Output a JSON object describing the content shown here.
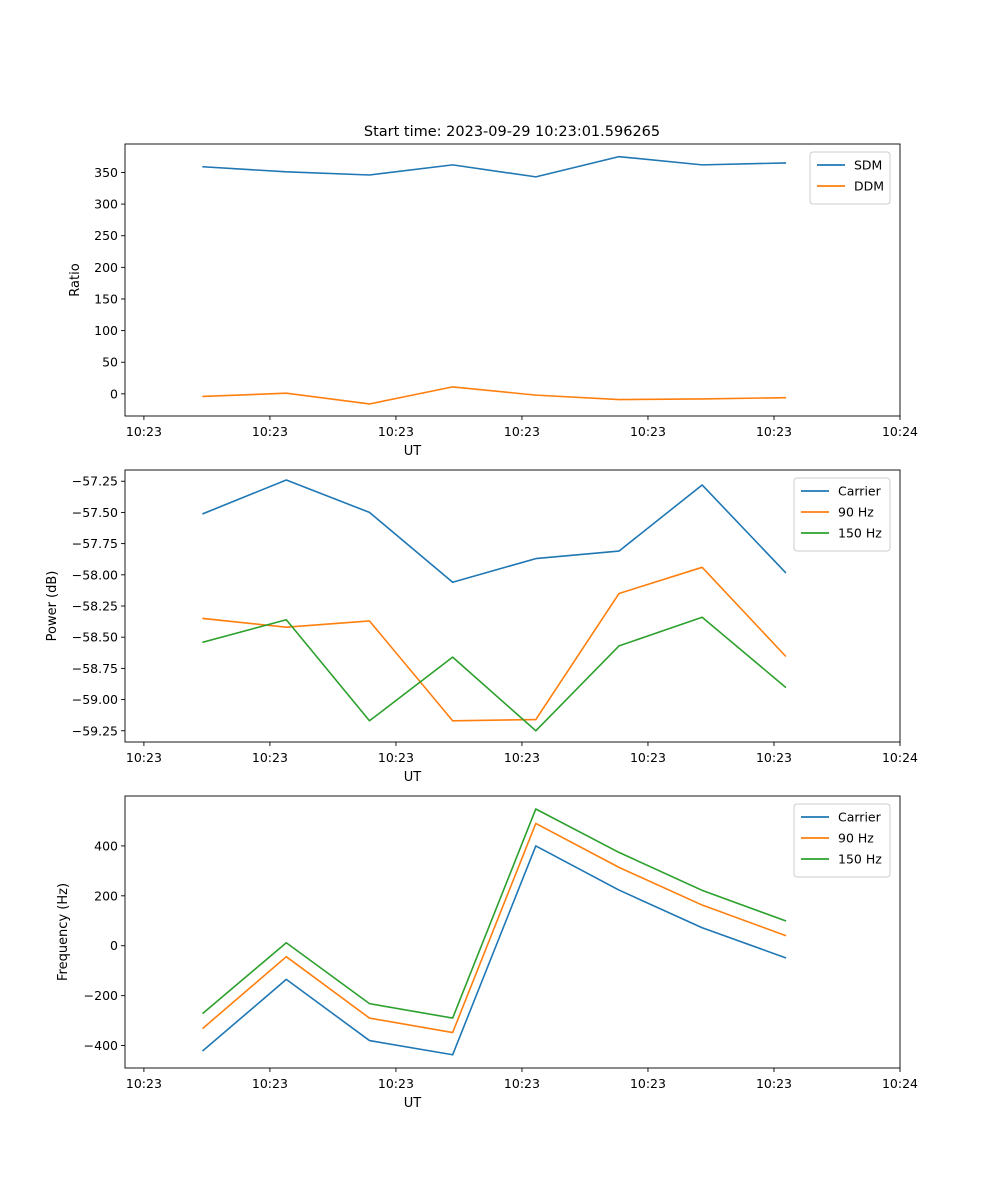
{
  "figure": {
    "title": "Start time: 2023-09-29 10:23:01.596265"
  },
  "chart_data": [
    {
      "type": "line",
      "title": "Start time: 2023-09-29 10:23:01.596265",
      "xlabel": "UT",
      "ylabel": "Ratio",
      "x_ticks": [
        0,
        1,
        2,
        3,
        4,
        5,
        6
      ],
      "x_tick_labels": [
        "10:23",
        "10:23",
        "10:23",
        "10:23",
        "10:23",
        "10:23",
        "10:24"
      ],
      "xlim": [
        -0.15,
        6.0
      ],
      "ylim": [
        -35,
        395
      ],
      "y_ticks": [
        0,
        50,
        100,
        150,
        200,
        250,
        300,
        350
      ],
      "y_tick_labels": [
        "0",
        "50",
        "100",
        "150",
        "200",
        "250",
        "300",
        "350"
      ],
      "legend_position": "top-right",
      "x": [
        0.47,
        1.13,
        1.79,
        2.45,
        3.11,
        3.77,
        4.43,
        5.09
      ],
      "series": [
        {
          "name": "SDM",
          "color": "#1f77b4",
          "values": [
            359,
            351,
            346,
            362,
            343,
            375,
            362,
            365
          ]
        },
        {
          "name": "DDM",
          "color": "#ff7f0e",
          "values": [
            -4,
            1,
            -16,
            11,
            -2,
            -9,
            -8,
            -6
          ]
        }
      ]
    },
    {
      "type": "line",
      "title": "",
      "xlabel": "UT",
      "ylabel": "Power (dB)",
      "x_ticks": [
        0,
        1,
        2,
        3,
        4,
        5,
        6
      ],
      "x_tick_labels": [
        "10:23",
        "10:23",
        "10:23",
        "10:23",
        "10:23",
        "10:23",
        "10:24"
      ],
      "xlim": [
        -0.15,
        6.0
      ],
      "ylim": [
        -59.34,
        -57.16
      ],
      "y_ticks": [
        -59.25,
        -59.0,
        -58.75,
        -58.5,
        -58.25,
        -58.0,
        -57.75,
        -57.5,
        -57.25
      ],
      "y_tick_labels": [
        "−59.25",
        "−59.00",
        "−58.75",
        "−58.50",
        "−58.25",
        "−58.00",
        "−57.75",
        "−57.50",
        "−57.25"
      ],
      "legend_position": "top-right",
      "x": [
        0.47,
        1.13,
        1.79,
        2.45,
        3.11,
        3.77,
        4.43,
        5.09
      ],
      "series": [
        {
          "name": "Carrier",
          "color": "#1f77b4",
          "values": [
            -57.51,
            -57.24,
            -57.5,
            -58.06,
            -57.87,
            -57.81,
            -57.28,
            -57.98
          ]
        },
        {
          "name": "90 Hz",
          "color": "#ff7f0e",
          "values": [
            -58.35,
            -58.42,
            -58.37,
            -59.17,
            -59.16,
            -58.15,
            -57.94,
            -58.65
          ]
        },
        {
          "name": "150 Hz",
          "color": "#2ca02c",
          "values": [
            -58.54,
            -58.36,
            -59.17,
            -58.66,
            -59.25,
            -58.57,
            -58.34,
            -58.9
          ]
        }
      ]
    },
    {
      "type": "line",
      "title": "",
      "xlabel": "UT",
      "ylabel": "Frequency (Hz)",
      "x_ticks": [
        0,
        1,
        2,
        3,
        4,
        5,
        6
      ],
      "x_tick_labels": [
        "10:23",
        "10:23",
        "10:23",
        "10:23",
        "10:23",
        "10:23",
        "10:24"
      ],
      "xlim": [
        -0.15,
        6.0
      ],
      "ylim": [
        -490,
        600
      ],
      "y_ticks": [
        -400,
        -200,
        0,
        200,
        400
      ],
      "y_tick_labels": [
        "−400",
        "−200",
        "0",
        "200",
        "400"
      ],
      "legend_position": "top-right",
      "x": [
        0.47,
        1.13,
        1.79,
        2.45,
        3.11,
        3.77,
        4.43,
        5.09
      ],
      "series": [
        {
          "name": "Carrier",
          "color": "#1f77b4",
          "values": [
            -420,
            -135,
            -380,
            -437,
            400,
            223,
            72,
            -48
          ]
        },
        {
          "name": "90 Hz",
          "color": "#ff7f0e",
          "values": [
            -330,
            -44,
            -290,
            -348,
            490,
            314,
            163,
            41
          ]
        },
        {
          "name": "150 Hz",
          "color": "#2ca02c",
          "values": [
            -270,
            12,
            -232,
            -290,
            548,
            374,
            222,
            100
          ]
        }
      ]
    }
  ]
}
